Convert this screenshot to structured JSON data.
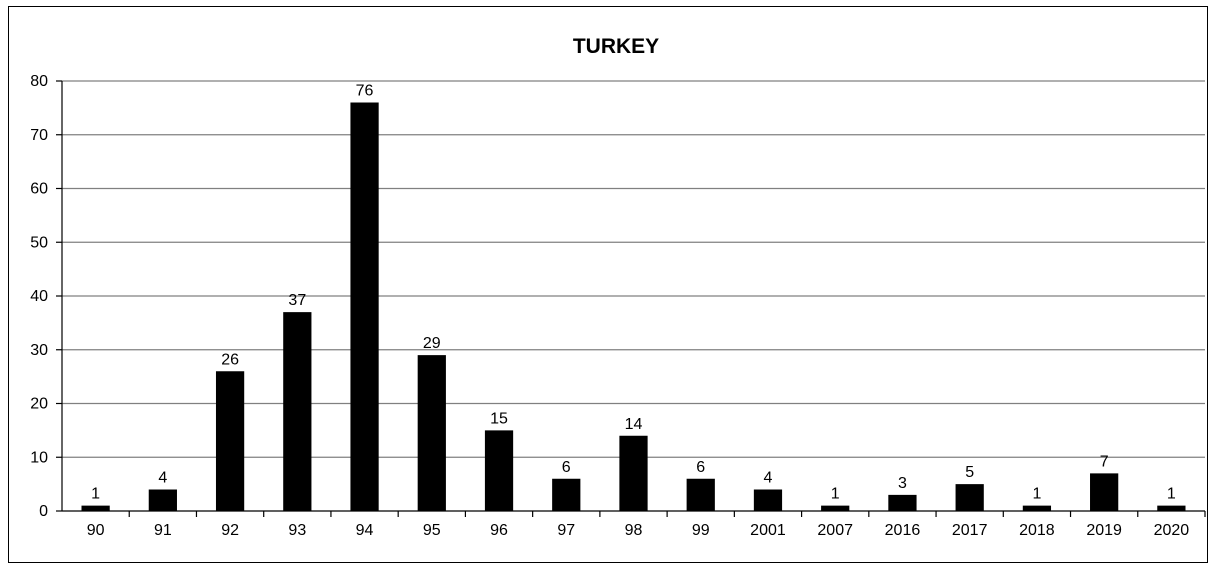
{
  "chart_data": {
    "type": "bar",
    "title": "TURKEY",
    "xlabel": "",
    "ylabel": "",
    "categories": [
      "90",
      "91",
      "92",
      "93",
      "94",
      "95",
      "96",
      "97",
      "98",
      "99",
      "2001",
      "2007",
      "2016",
      "2017",
      "2018",
      "2019",
      "2020"
    ],
    "values": [
      1,
      4,
      26,
      37,
      76,
      29,
      15,
      6,
      14,
      6,
      4,
      1,
      3,
      5,
      1,
      7,
      1
    ],
    "ylim": [
      0,
      80
    ],
    "yticks": [
      0,
      10,
      20,
      30,
      40,
      50,
      60,
      70,
      80
    ],
    "grid": true,
    "legend": "none",
    "bar_color": "#000000",
    "grid_color": "#808080"
  }
}
